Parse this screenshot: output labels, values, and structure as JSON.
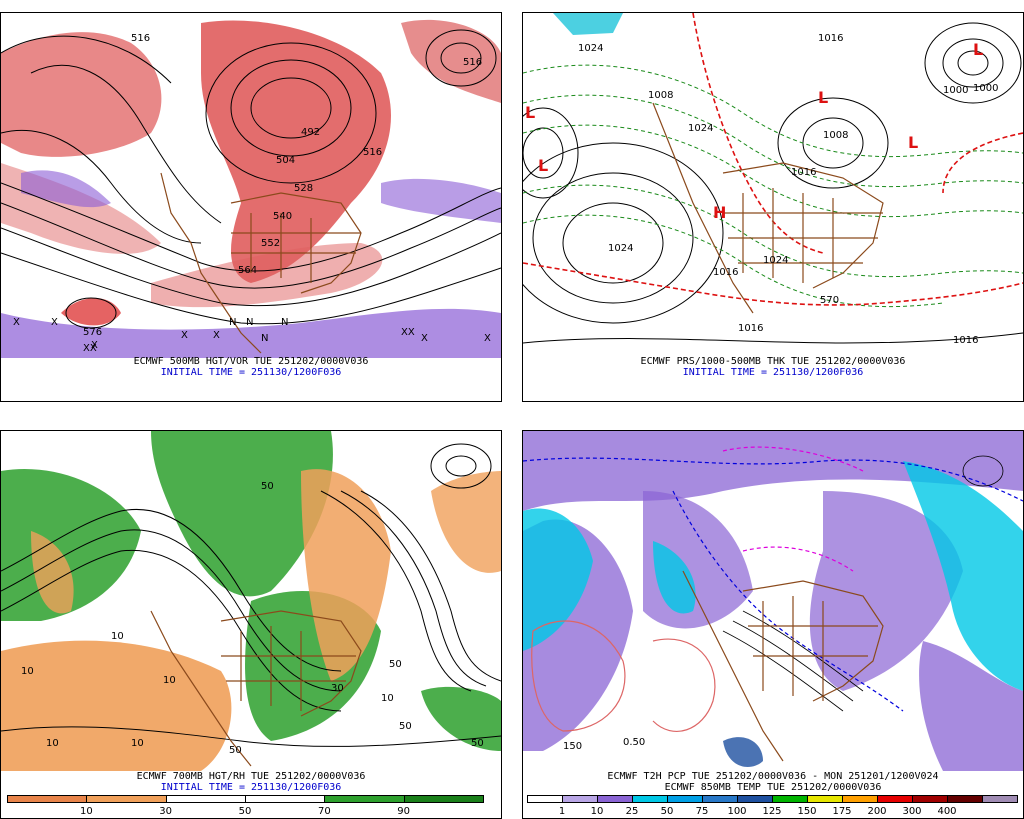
{
  "panels": [
    {
      "id": "p500",
      "line1": "ECMWF 500MB HGT/VOR TUE 251202/0000V036",
      "line2": "INITIAL TIME = 251130/1200F036",
      "contour_labels": [
        "516",
        "492",
        "504",
        "516",
        "528",
        "540",
        "552",
        "564",
        "576",
        "516"
      ],
      "markers": [
        "X",
        "X",
        "X",
        "X",
        "X",
        "N",
        "N",
        "N",
        "N",
        "XX",
        "XX",
        "X",
        "X"
      ]
    },
    {
      "id": "pmsl",
      "line1": "ECMWF PRS/1000-500MB THK TUE 251202/0000V036",
      "line2": "INITIAL TIME = 251130/1200F036",
      "contour_labels": [
        "1024",
        "1024",
        "1016",
        "1008",
        "1000",
        "1008",
        "1024",
        "1016",
        "1024",
        "1000",
        "1016",
        "570",
        "1016",
        "1016"
      ],
      "markers": [
        "L",
        "L",
        "L",
        "L",
        "L",
        "H"
      ]
    },
    {
      "id": "p700",
      "line1": "ECMWF 700MB HGT/RH TUE 251202/0000V036",
      "line2": "INITIAL TIME = 251130/1200F036",
      "contour_labels": [
        "10",
        "10",
        "10",
        "50",
        "10",
        "50",
        "50",
        "30",
        "50",
        "10",
        "50",
        "10"
      ],
      "colorbar": {
        "colors": [
          "#e8844a",
          "#f0a05a",
          "#ffffff",
          "#ffffff",
          "#2da02d",
          "#1a801a"
        ],
        "labels": [
          "10",
          "30",
          "50",
          "70",
          "90"
        ]
      }
    },
    {
      "id": "pt2",
      "line1": "ECMWF T2H PCP TUE 251202/0000V036 - MON 251201/1200V024",
      "line2": "ECMWF 850MB TEMP TUE 251202/0000V036",
      "contour_labels": [
        "150",
        "0.50"
      ],
      "colorbar": {
        "colors": [
          "#ffffff",
          "#b9a6e6",
          "#8a64d4",
          "#00c8e6",
          "#00a0e6",
          "#2878c8",
          "#1e50a0",
          "#00b400",
          "#e6e600",
          "#ffa000",
          "#e60000",
          "#a00000",
          "#640000",
          "#a08cb4"
        ],
        "labels": [
          "1",
          "10",
          "25",
          "50",
          "75",
          "100",
          "125",
          "150",
          "175",
          "200",
          "300",
          "400"
        ]
      }
    }
  ]
}
